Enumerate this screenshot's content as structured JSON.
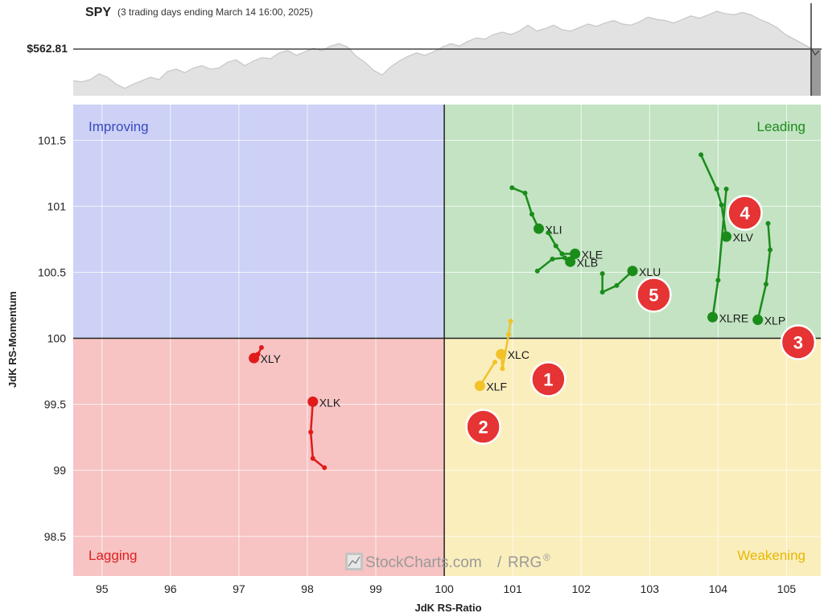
{
  "header": {
    "symbol": "SPY",
    "subtitle": "(3 trading days ending March 14 16:00, 2025)",
    "price_label": "$562.81"
  },
  "watermark": {
    "text": "StockCharts.com",
    "suffix": "RRG",
    "reg": "®"
  },
  "chart_data": {
    "type": "scatter",
    "xlabel": "JdK RS-Ratio",
    "ylabel": "JdK RS-Momentum",
    "xlim": [
      94.58,
      105.5
    ],
    "ylim": [
      98.2,
      101.77
    ],
    "xticks": [
      95,
      96,
      97,
      98,
      99,
      100,
      101,
      102,
      103,
      104,
      105
    ],
    "yticks": [
      98.5,
      99,
      99.5,
      100,
      100.5,
      101,
      101.5
    ],
    "grid": true,
    "center": [
      100,
      100
    ],
    "quadrants": [
      {
        "name": "Improving",
        "position": "top-left",
        "fill": "#ccd1f5",
        "color": "#3949c0"
      },
      {
        "name": "Leading",
        "position": "top-right",
        "fill": "#c3e3c3",
        "color": "#1e8a1e"
      },
      {
        "name": "Weakening",
        "position": "bottom-right",
        "fill": "#faeebd",
        "color": "#e8b800"
      },
      {
        "name": "Lagging",
        "position": "bottom-left",
        "fill": "#f7c3c3",
        "color": "#e02020"
      }
    ],
    "series": [
      {
        "name": "XLY",
        "color": "#e21a1a",
        "points": [
          [
            97.33,
            99.93
          ],
          [
            97.28,
            99.88
          ],
          [
            97.22,
            99.85
          ]
        ]
      },
      {
        "name": "XLK",
        "color": "#e21a1a",
        "points": [
          [
            98.25,
            99.02
          ],
          [
            98.08,
            99.09
          ],
          [
            98.05,
            99.29
          ],
          [
            98.08,
            99.52
          ]
        ]
      },
      {
        "name": "XLC",
        "color": "#f2c22a",
        "points": [
          [
            100.97,
            100.13
          ],
          [
            100.94,
            100.03
          ],
          [
            100.85,
            99.77
          ],
          [
            100.83,
            99.88
          ]
        ]
      },
      {
        "name": "XLF",
        "color": "#f2c22a",
        "points": [
          [
            100.74,
            99.82
          ],
          [
            100.52,
            99.64
          ]
        ]
      },
      {
        "name": "XLI",
        "color": "#1a8c1a",
        "points": [
          [
            100.99,
            101.14
          ],
          [
            101.18,
            101.1
          ],
          [
            101.28,
            100.94
          ],
          [
            101.38,
            100.83
          ]
        ]
      },
      {
        "name": "XLE",
        "color": "#1a8c1a",
        "points": [
          [
            101.52,
            100.8
          ],
          [
            101.63,
            100.7
          ],
          [
            101.72,
            100.64
          ],
          [
            101.91,
            100.64
          ]
        ]
      },
      {
        "name": "XLB",
        "color": "#1a8c1a",
        "points": [
          [
            101.36,
            100.51
          ],
          [
            101.58,
            100.6
          ],
          [
            101.76,
            100.61
          ],
          [
            101.84,
            100.58
          ]
        ]
      },
      {
        "name": "XLU",
        "color": "#1a8c1a",
        "points": [
          [
            102.31,
            100.49
          ],
          [
            102.31,
            100.35
          ],
          [
            102.52,
            100.4
          ],
          [
            102.75,
            100.51
          ]
        ]
      },
      {
        "name": "XLV",
        "color": "#1a8c1a",
        "points": [
          [
            103.75,
            101.39
          ],
          [
            103.98,
            101.13
          ],
          [
            104.05,
            101.01
          ],
          [
            104.12,
            100.77
          ]
        ]
      },
      {
        "name": "XLRE",
        "color": "#1a8c1a",
        "points": [
          [
            104.12,
            101.13
          ],
          [
            104.0,
            100.44
          ],
          [
            103.92,
            100.16
          ]
        ]
      },
      {
        "name": "XLP",
        "color": "#1a8c1a",
        "points": [
          [
            104.73,
            100.87
          ],
          [
            104.76,
            100.67
          ],
          [
            104.7,
            100.41
          ],
          [
            104.58,
            100.14
          ]
        ]
      }
    ],
    "annotations": [
      {
        "label": "1",
        "x": 101.52,
        "y": 99.69
      },
      {
        "label": "2",
        "x": 100.57,
        "y": 99.33
      },
      {
        "label": "3",
        "x": 105.17,
        "y": 99.97
      },
      {
        "label": "4",
        "x": 104.39,
        "y": 100.95
      },
      {
        "label": "5",
        "x": 103.06,
        "y": 100.33
      }
    ],
    "benchmark": {
      "name": "SPY",
      "price_range": [
        540,
        580
      ],
      "price_axis_value": 562.81,
      "values": [
        546.5,
        546,
        547,
        549.5,
        548,
        545,
        543.2,
        545,
        546.5,
        548,
        547,
        550.5,
        551.5,
        550,
        552,
        553,
        551.5,
        552,
        554.5,
        555.5,
        553,
        555,
        556.5,
        556,
        558.5,
        559.5,
        557.5,
        559,
        560.5,
        559.5,
        561.5,
        562.5,
        561,
        557,
        554.5,
        551,
        549,
        552.5,
        555,
        557,
        558.5,
        557.5,
        559,
        561,
        562.5,
        561.5,
        563.5,
        565,
        564.5,
        566.5,
        567.5,
        566.5,
        568,
        570.5,
        568,
        569,
        570.5,
        568.5,
        568,
        569.5,
        571,
        570,
        571.5,
        572.5,
        571,
        570.5,
        572,
        574,
        573,
        572.5,
        571.5,
        573,
        574.5,
        573.5,
        575,
        576.5,
        575.5,
        575,
        576,
        575,
        573,
        571.5,
        569.5,
        566.5,
        564.5,
        562.5,
        560.5
      ]
    }
  }
}
